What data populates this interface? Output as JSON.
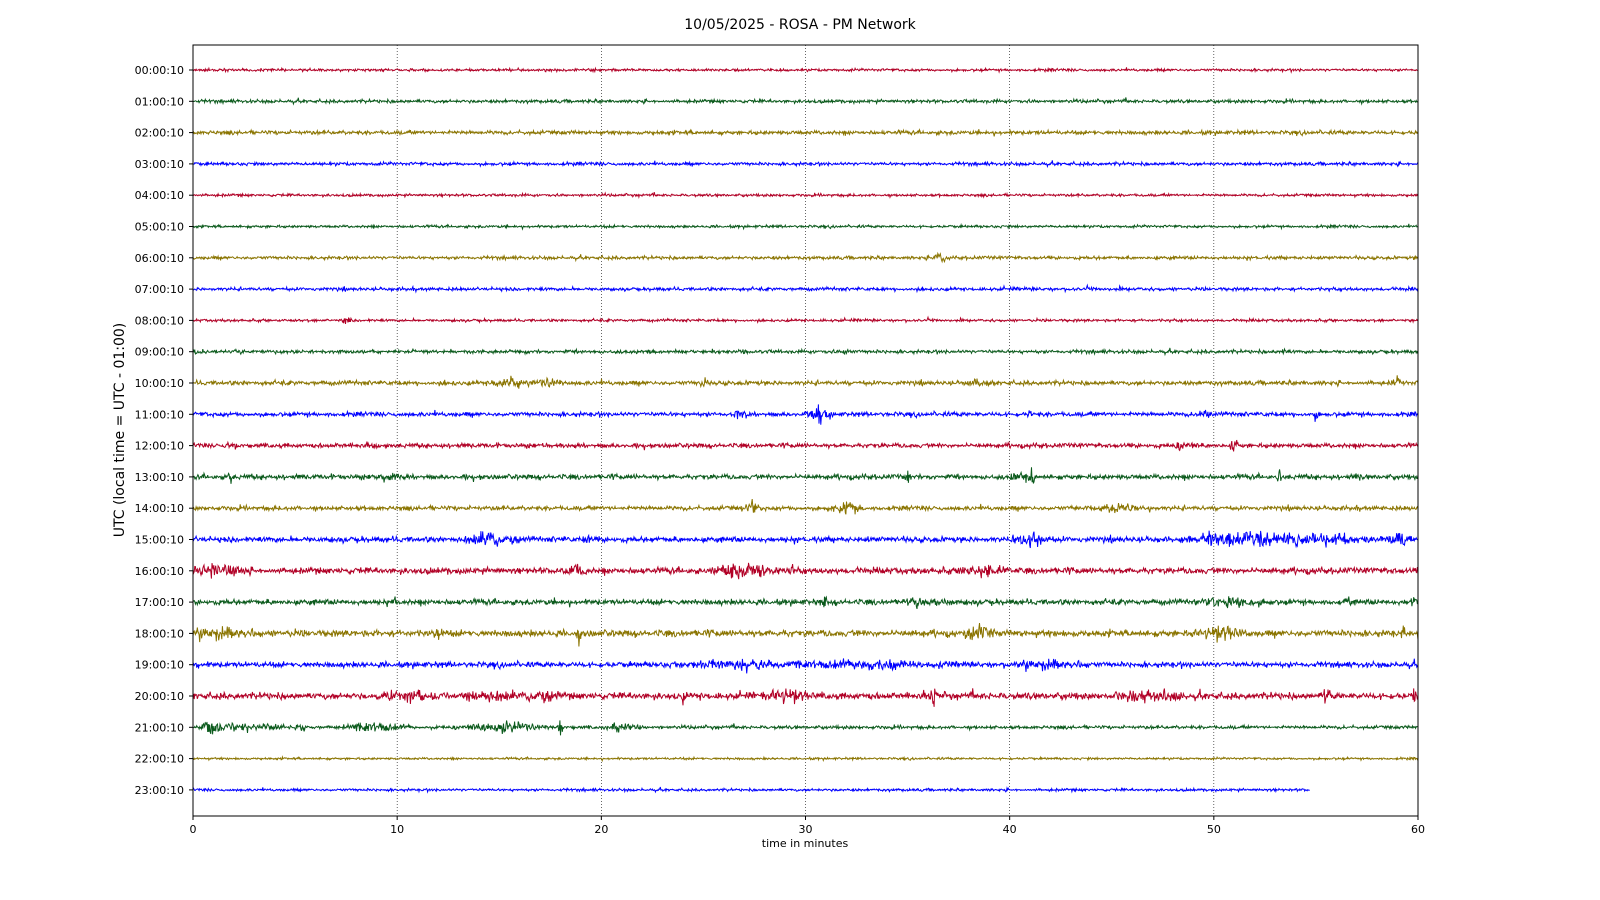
{
  "chart_data": {
    "type": "line",
    "title": "10/05/2025 - ROSA - PM Network",
    "xlabel": "time in minutes",
    "ylabel": "UTC (local time = UTC - 01:00)",
    "xlim": [
      0,
      60
    ],
    "xticks": [
      0,
      10,
      20,
      30,
      40,
      50,
      60
    ],
    "grid": "vertical dotted at x ticks",
    "colors": [
      "#b10026",
      "#0b5a1c",
      "#8a7400",
      "#0000ff"
    ],
    "series": [
      {
        "label": "00:00:10",
        "end": 60,
        "amp": 1.2,
        "events": []
      },
      {
        "label": "01:00:10",
        "end": 60,
        "amp": 1.5,
        "events": []
      },
      {
        "label": "02:00:10",
        "end": 60,
        "amp": 1.8,
        "events": []
      },
      {
        "label": "03:00:10",
        "end": 60,
        "amp": 1.5,
        "events": []
      },
      {
        "label": "04:00:10",
        "end": 60,
        "amp": 1.2,
        "events": []
      },
      {
        "label": "05:00:10",
        "end": 60,
        "amp": 1.2,
        "events": []
      },
      {
        "label": "06:00:10",
        "end": 60,
        "amp": 1.5,
        "events": [
          [
            36.6,
            0.4,
            6
          ]
        ]
      },
      {
        "label": "07:00:10",
        "end": 60,
        "amp": 1.5,
        "events": []
      },
      {
        "label": "08:00:10",
        "end": 60,
        "amp": 1.2,
        "events": [
          [
            7.5,
            0.3,
            3
          ]
        ]
      },
      {
        "label": "09:00:10",
        "end": 60,
        "amp": 1.6,
        "events": [
          [
            27,
            0.2,
            4
          ],
          [
            32,
            0.2,
            4
          ],
          [
            53.5,
            0.2,
            4
          ]
        ]
      },
      {
        "label": "10:00:10",
        "end": 60,
        "amp": 2.0,
        "events": [
          [
            15.6,
            1.0,
            6
          ],
          [
            17.5,
            0.8,
            5
          ],
          [
            25,
            0.2,
            5
          ],
          [
            38.5,
            0.8,
            4
          ],
          [
            59,
            0.4,
            4
          ]
        ]
      },
      {
        "label": "11:00:10",
        "end": 60,
        "amp": 2.0,
        "events": [
          [
            26.8,
            0.5,
            7
          ],
          [
            30.6,
            0.8,
            7
          ],
          [
            41,
            0.2,
            5
          ],
          [
            49.5,
            0.4,
            5
          ],
          [
            55,
            0.2,
            4
          ]
        ]
      },
      {
        "label": "12:00:10",
        "end": 60,
        "amp": 2.0,
        "events": [
          [
            2,
            0.4,
            4
          ],
          [
            48.5,
            0.8,
            6
          ],
          [
            51,
            0.2,
            10
          ]
        ]
      },
      {
        "label": "13:00:10",
        "end": 60,
        "amp": 2.2,
        "events": [
          [
            1.8,
            0.2,
            6
          ],
          [
            9.5,
            0.8,
            5
          ],
          [
            35,
            0.2,
            5
          ],
          [
            40.5,
            0.6,
            5
          ],
          [
            41.1,
            0.2,
            12
          ],
          [
            53.2,
            0.2,
            6
          ],
          [
            57,
            0.2,
            5
          ]
        ]
      },
      {
        "label": "14:00:10",
        "end": 60,
        "amp": 2.0,
        "events": [
          [
            27.3,
            0.6,
            7
          ],
          [
            32,
            1.0,
            5
          ],
          [
            45,
            2.0,
            3
          ]
        ]
      },
      {
        "label": "15:00:10",
        "end": 60,
        "amp": 2.5,
        "events": [
          [
            14.5,
            1.8,
            7
          ],
          [
            19.3,
            0.2,
            8
          ],
          [
            41,
            1.0,
            8
          ],
          [
            51,
            3.0,
            8
          ],
          [
            55,
            3.0,
            6
          ],
          [
            59,
            1.0,
            5
          ]
        ]
      },
      {
        "label": "16:00:10",
        "end": 60,
        "amp": 2.8,
        "events": [
          [
            1.2,
            1.5,
            8
          ],
          [
            18.8,
            0.6,
            6
          ],
          [
            27,
            2.0,
            7
          ],
          [
            29.3,
            0.2,
            8
          ],
          [
            39,
            1.5,
            5
          ]
        ]
      },
      {
        "label": "17:00:10",
        "end": 60,
        "amp": 2.5,
        "events": [
          [
            9.8,
            0.2,
            6
          ],
          [
            31,
            0.2,
            7
          ],
          [
            36,
            1.5,
            4
          ],
          [
            51,
            2.0,
            5
          ],
          [
            56.5,
            0.2,
            8
          ],
          [
            59.8,
            0.2,
            8
          ]
        ]
      },
      {
        "label": "18:00:10",
        "end": 60,
        "amp": 3.0,
        "events": [
          [
            1.5,
            2.0,
            6
          ],
          [
            12,
            0.5,
            6
          ],
          [
            18.9,
            0.2,
            11
          ],
          [
            38.5,
            1.0,
            7
          ],
          [
            50.5,
            1.5,
            7
          ],
          [
            59.3,
            0.2,
            8
          ]
        ]
      },
      {
        "label": "19:00:10",
        "end": 60,
        "amp": 2.5,
        "events": [
          [
            0.2,
            0.1,
            6
          ],
          [
            26.5,
            3.0,
            5
          ],
          [
            33,
            4.0,
            5
          ],
          [
            42,
            2.0,
            5
          ]
        ]
      },
      {
        "label": "20:00:10",
        "end": 60,
        "amp": 3.0,
        "events": [
          [
            10.5,
            2.0,
            5
          ],
          [
            14.5,
            1.5,
            7
          ],
          [
            17,
            1.0,
            6
          ],
          [
            24,
            0.2,
            7
          ],
          [
            29,
            1.5,
            6
          ],
          [
            36.3,
            0.2,
            11
          ],
          [
            47,
            2.0,
            5
          ],
          [
            55.5,
            0.3,
            7
          ],
          [
            59.8,
            0.2,
            8
          ]
        ]
      },
      {
        "label": "21:00:10",
        "end": 60,
        "amp": 1.5,
        "events": [
          [
            0.9,
            0.6,
            10
          ],
          [
            2.5,
            2.5,
            5
          ],
          [
            5.4,
            0.2,
            8
          ],
          [
            9,
            2.0,
            5
          ],
          [
            15,
            3.0,
            5
          ],
          [
            18,
            0.2,
            8
          ],
          [
            21,
            1.0,
            6
          ]
        ]
      },
      {
        "label": "22:00:10",
        "end": 60,
        "amp": 1.0,
        "events": []
      },
      {
        "label": "23:00:10",
        "end": 54.7,
        "amp": 1.2,
        "events": []
      }
    ]
  }
}
